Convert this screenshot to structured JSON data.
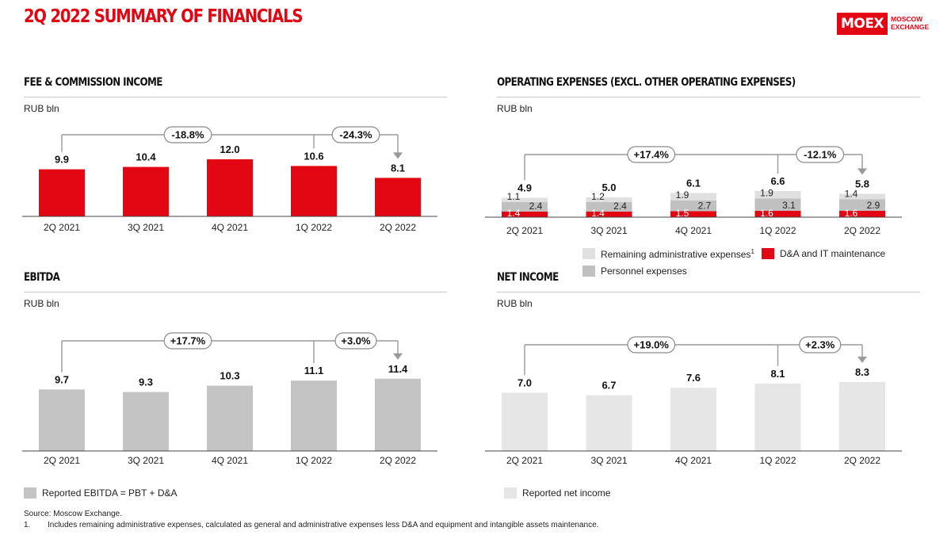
{
  "page": {
    "title": "2Q 2022 SUMMARY OF FINANCIALS",
    "logo": {
      "mark": "MOEX",
      "text": "MOSCOW\nEXCHANGE"
    },
    "source": "Source: Moscow Exchange.",
    "footnote_num": "1.",
    "footnote_text": "Includes remaining administrative expenses, calculated as general and administrative expenses less D&A and equipment and intangible assets maintenance."
  },
  "colors": {
    "red": "#e30613",
    "light_gray": "#e0e0e0",
    "mid_gray": "#c0c0c0",
    "pale_gray": "#e6e6e6",
    "ebitda_gray": "#c4c4c4"
  },
  "chart_data": [
    {
      "id": "fee",
      "type": "bar",
      "title": "FEE & COMMISSION INCOME",
      "unit": "RUB bln",
      "categories": [
        "2Q 2021",
        "3Q 2021",
        "4Q 2021",
        "1Q 2022",
        "2Q 2022"
      ],
      "series": [
        {
          "values": [
            9.9,
            10.4,
            12.0,
            10.6,
            8.1
          ]
        }
      ],
      "value_labels": [
        "9.9",
        "10.4",
        "12.0",
        "10.6",
        "8.1"
      ],
      "color": "#e30613",
      "changes": [
        {
          "label": "-18.8%",
          "from": 0,
          "to": 4
        },
        {
          "label": "-24.3%",
          "from": 3,
          "to": 4
        }
      ]
    },
    {
      "id": "opex",
      "type": "bar",
      "stacked": true,
      "title": "OPERATING EXPENSES (EXCL. OTHER OPERATING EXPENSES)",
      "unit": "RUB bln",
      "categories": [
        "2Q 2021",
        "3Q 2021",
        "4Q 2021",
        "1Q 2022",
        "2Q 2022"
      ],
      "series": [
        {
          "name": "D&A and IT maintenance",
          "color": "#e30613",
          "values": [
            1.4,
            1.4,
            1.5,
            1.6,
            1.6
          ]
        },
        {
          "name": "Personnel expenses",
          "color": "#c0c0c0",
          "values": [
            2.4,
            2.4,
            2.7,
            3.1,
            2.9
          ]
        },
        {
          "name": "Remaining administrative expenses",
          "footnote": "1",
          "color": "#e0e0e0",
          "values": [
            1.1,
            1.2,
            1.9,
            1.9,
            1.4
          ]
        }
      ],
      "totals": [
        "4.9",
        "5.0",
        "6.1",
        "6.6",
        "5.8"
      ],
      "legend": [
        {
          "label": "Remaining administrative expenses",
          "sup": "1",
          "color": "#e0e0e0"
        },
        {
          "label": "D&A and IT maintenance",
          "color": "#e30613"
        },
        {
          "label": "Personnel expenses",
          "color": "#c0c0c0"
        }
      ],
      "changes": [
        {
          "label": "+17.4%",
          "from": 0,
          "to": 4
        },
        {
          "label": "-12.1%",
          "from": 3,
          "to": 4
        }
      ]
    },
    {
      "id": "ebitda",
      "type": "bar",
      "title": "EBITDA",
      "unit": "RUB bln",
      "categories": [
        "2Q 2021",
        "3Q 2021",
        "4Q 2021",
        "1Q 2022",
        "2Q 2022"
      ],
      "series": [
        {
          "name": "Reported EBITDA = PBT + D&A",
          "values": [
            9.7,
            9.3,
            10.3,
            11.1,
            11.4
          ]
        }
      ],
      "value_labels": [
        "9.7",
        "9.3",
        "10.3",
        "11.1",
        "11.4"
      ],
      "color": "#c4c4c4",
      "legend": [
        {
          "label": "Reported EBITDA = PBT + D&A",
          "color": "#c4c4c4"
        }
      ],
      "changes": [
        {
          "label": "+17.7%",
          "from": 0,
          "to": 4
        },
        {
          "label": "+3.0%",
          "from": 3,
          "to": 4
        }
      ]
    },
    {
      "id": "net",
      "type": "bar",
      "title": "NET INCOME",
      "unit": "RUB bln",
      "categories": [
        "2Q 2021",
        "3Q 2021",
        "4Q 2021",
        "1Q 2022",
        "2Q 2022"
      ],
      "series": [
        {
          "name": "Reported net income",
          "values": [
            7.0,
            6.7,
            7.6,
            8.1,
            8.3
          ]
        }
      ],
      "value_labels": [
        "7.0",
        "6.7",
        "7.6",
        "8.1",
        "8.3"
      ],
      "color": "#e6e6e6",
      "legend": [
        {
          "label": "Reported net income",
          "color": "#e6e6e6"
        }
      ],
      "changes": [
        {
          "label": "+19.0%",
          "from": 0,
          "to": 4
        },
        {
          "label": "+2.3%",
          "from": 3,
          "to": 4
        }
      ]
    }
  ]
}
